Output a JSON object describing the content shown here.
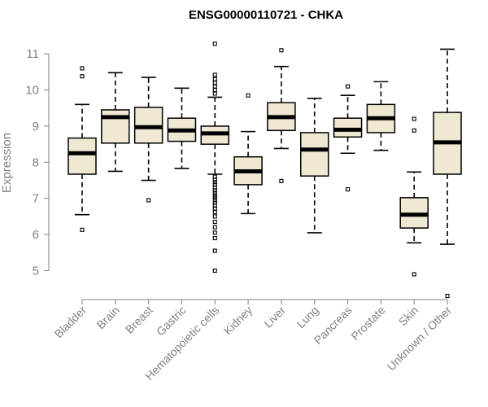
{
  "chart_data": {
    "type": "boxplot",
    "title": "ENSG00000110721 - CHKA",
    "xlabel": "",
    "ylabel": "Expression",
    "ylim": [
      4.2,
      11.5
    ],
    "yticks": [
      5,
      6,
      7,
      8,
      9,
      10,
      11
    ],
    "box_color": "#efe8d2",
    "categories": [
      "Bladder",
      "Brain",
      "Breast",
      "Gastric",
      "Hematopoietic cells",
      "Kidney",
      "Liver",
      "Lung",
      "Pancreas",
      "Prostate",
      "Skin",
      "Unknown / Other"
    ],
    "boxes": [
      {
        "name": "Bladder",
        "whisker_low": 6.55,
        "q1": 7.67,
        "median": 8.25,
        "q3": 8.67,
        "whisker_high": 9.6,
        "outliers": [
          6.13,
          10.38,
          10.6
        ]
      },
      {
        "name": "Brain",
        "whisker_low": 7.75,
        "q1": 8.53,
        "median": 9.25,
        "q3": 9.45,
        "whisker_high": 10.48,
        "outliers": []
      },
      {
        "name": "Breast",
        "whisker_low": 7.5,
        "q1": 8.53,
        "median": 8.97,
        "q3": 9.52,
        "whisker_high": 10.35,
        "outliers": [
          6.95
        ]
      },
      {
        "name": "Gastric",
        "whisker_low": 7.83,
        "q1": 8.58,
        "median": 8.88,
        "q3": 9.22,
        "whisker_high": 10.05,
        "outliers": []
      },
      {
        "name": "Hematopoietic cells",
        "whisker_low": 7.67,
        "q1": 8.5,
        "median": 8.8,
        "q3": 9.0,
        "whisker_high": 9.8,
        "outliers": [
          5.0,
          5.55,
          5.9,
          6.05,
          6.2,
          6.35,
          6.5,
          6.62,
          6.72,
          6.8,
          6.88,
          6.95,
          7.02,
          7.08,
          7.15,
          7.22,
          7.3,
          7.38,
          7.45,
          7.52,
          7.6,
          9.9,
          10.0,
          10.1,
          10.2,
          10.3,
          10.42,
          11.28
        ]
      },
      {
        "name": "Kidney",
        "whisker_low": 6.58,
        "q1": 7.38,
        "median": 7.75,
        "q3": 8.15,
        "whisker_high": 8.85,
        "outliers": [
          9.85
        ]
      },
      {
        "name": "Liver",
        "whisker_low": 8.38,
        "q1": 8.88,
        "median": 9.25,
        "q3": 9.65,
        "whisker_high": 10.65,
        "outliers": [
          7.48,
          11.1
        ]
      },
      {
        "name": "Lung",
        "whisker_low": 6.05,
        "q1": 7.62,
        "median": 8.35,
        "q3": 8.82,
        "whisker_high": 9.77,
        "outliers": []
      },
      {
        "name": "Pancreas",
        "whisker_low": 8.25,
        "q1": 8.7,
        "median": 8.9,
        "q3": 9.22,
        "whisker_high": 9.85,
        "outliers": [
          7.25,
          10.1
        ]
      },
      {
        "name": "Prostate",
        "whisker_low": 8.33,
        "q1": 8.82,
        "median": 9.22,
        "q3": 9.6,
        "whisker_high": 10.23,
        "outliers": []
      },
      {
        "name": "Skin",
        "whisker_low": 5.77,
        "q1": 6.18,
        "median": 6.55,
        "q3": 7.02,
        "whisker_high": 7.73,
        "outliers": [
          4.9,
          8.88,
          9.2
        ]
      },
      {
        "name": "Unknown / Other",
        "whisker_low": 5.73,
        "q1": 7.67,
        "median": 8.55,
        "q3": 9.38,
        "whisker_high": 11.13,
        "outliers": [
          4.3
        ]
      }
    ]
  }
}
